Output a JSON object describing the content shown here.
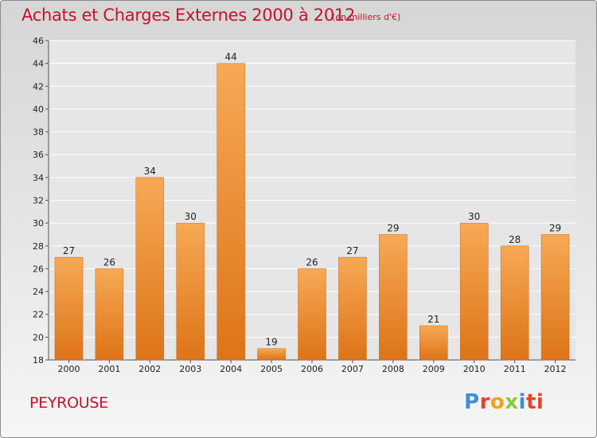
{
  "title": "Achats et Charges Externes 2000 à 2012",
  "unit_note": "(en milliers d'€)",
  "commune": "PEYROUSE",
  "logo": {
    "p1": "P",
    "p2": "r",
    "p3": "o",
    "p4": "x",
    "p5": "i",
    "p6": "ti"
  },
  "colors": {
    "bar": "#f08a2c",
    "title": "#c8102e",
    "grid": "#ffffff"
  },
  "chart_data": {
    "type": "bar",
    "categories": [
      "2000",
      "2001",
      "2002",
      "2003",
      "2004",
      "2005",
      "2006",
      "2007",
      "2008",
      "2009",
      "2010",
      "2011",
      "2012"
    ],
    "values": [
      27,
      26,
      34,
      30,
      44,
      19,
      26,
      27,
      29,
      21,
      30,
      28,
      29
    ],
    "ylim": [
      18,
      46
    ],
    "yticks": [
      18,
      20,
      22,
      24,
      26,
      28,
      30,
      32,
      34,
      36,
      38,
      40,
      42,
      44,
      46
    ],
    "grid": true,
    "data_labels": true
  }
}
